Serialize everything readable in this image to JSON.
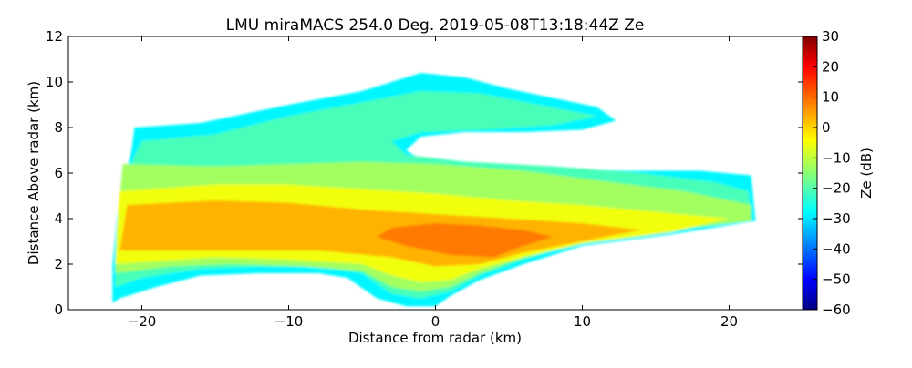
{
  "chart_data": {
    "type": "heatmap",
    "title": "LMU miraMACS 254.0 Deg. 2019-05-08T13:18:44Z  Ze",
    "xlabel": "Distance from radar (km)",
    "ylabel": "Distance Above radar  (km)",
    "xlim": [
      -25,
      25
    ],
    "ylim": [
      0,
      12
    ],
    "x_ticks": [
      -20,
      -10,
      0,
      10,
      20
    ],
    "x_tick_labels": [
      "−20",
      "−10",
      "0",
      "10",
      "20"
    ],
    "y_ticks": [
      0,
      2,
      4,
      6,
      8,
      10,
      12
    ],
    "y_tick_labels": [
      "0",
      "2",
      "4",
      "6",
      "8",
      "10",
      "12"
    ],
    "grid": false,
    "colorbar": {
      "label": "Ze (dB)",
      "colormap": "jet",
      "range": [
        -60,
        30
      ],
      "ticks": [
        30,
        20,
        10,
        0,
        -10,
        -20,
        -30,
        -40,
        -50,
        -60
      ],
      "tick_labels": [
        "30",
        "20",
        "10",
        "0",
        "−10",
        "−20",
        "−30",
        "−40",
        "−50",
        "−60"
      ]
    },
    "regions": [
      {
        "name": "upper-outline",
        "ze": -27,
        "points": [
          [
            -20.5,
            8.0
          ],
          [
            -16,
            8.2
          ],
          [
            -10,
            9.0
          ],
          [
            -5,
            9.6
          ],
          [
            -1,
            10.4
          ],
          [
            2,
            10.2
          ],
          [
            5,
            9.7
          ],
          [
            8,
            9.3
          ],
          [
            11,
            8.9
          ],
          [
            12.3,
            8.3
          ],
          [
            10,
            7.9
          ],
          [
            6,
            7.8
          ],
          [
            2,
            7.8
          ],
          [
            -1,
            7.6
          ],
          [
            -2,
            7.0
          ],
          [
            -1,
            6.6
          ],
          [
            3,
            6.4
          ],
          [
            8,
            6.2
          ],
          [
            13,
            6.1
          ],
          [
            18,
            6.1
          ],
          [
            21.5,
            5.9
          ],
          [
            21.8,
            3.9
          ],
          [
            16,
            3.3
          ],
          [
            10,
            2.8
          ],
          [
            6,
            2.0
          ],
          [
            3,
            1.3
          ],
          [
            1,
            0.6
          ],
          [
            0,
            0.15
          ],
          [
            -2,
            0.15
          ],
          [
            -4,
            0.5
          ],
          [
            -6,
            1.4
          ],
          [
            -8,
            1.6
          ],
          [
            -12,
            1.6
          ],
          [
            -16,
            1.5
          ],
          [
            -19,
            1.0
          ],
          [
            -21.5,
            0.5
          ],
          [
            -22,
            0.3
          ],
          [
            -22,
            2.0
          ],
          [
            -21.7,
            4.0
          ],
          [
            -21.2,
            5.7
          ],
          [
            -20.7,
            7.0
          ]
        ]
      },
      {
        "name": "upper-core",
        "ze": -20,
        "points": [
          [
            -20,
            7.4
          ],
          [
            -15,
            7.7
          ],
          [
            -10,
            8.5
          ],
          [
            -5,
            9.1
          ],
          [
            -1,
            9.6
          ],
          [
            3,
            9.5
          ],
          [
            7,
            9.0
          ],
          [
            11,
            8.5
          ],
          [
            8,
            8.1
          ],
          [
            3,
            7.9
          ],
          [
            -1,
            7.8
          ],
          [
            -3,
            7.4
          ],
          [
            -2,
            6.8
          ],
          [
            2,
            6.5
          ],
          [
            8,
            6.3
          ],
          [
            14,
            6.0
          ],
          [
            19,
            5.6
          ],
          [
            21.3,
            5.2
          ],
          [
            21.5,
            4.1
          ],
          [
            15,
            3.5
          ],
          [
            10,
            3.0
          ],
          [
            6,
            2.2
          ],
          [
            3,
            1.5
          ],
          [
            1,
            0.8
          ],
          [
            -1,
            0.5
          ],
          [
            -3,
            0.7
          ],
          [
            -5,
            1.6
          ],
          [
            -8,
            1.9
          ],
          [
            -12,
            1.9
          ],
          [
            -16,
            1.8
          ],
          [
            -20,
            1.4
          ],
          [
            -21.8,
            1.0
          ],
          [
            -21.6,
            3.5
          ],
          [
            -21,
            5.5
          ],
          [
            -20.6,
            6.6
          ]
        ]
      },
      {
        "name": "mid-layer",
        "ze": -12,
        "points": [
          [
            -21.3,
            6.4
          ],
          [
            -15,
            6.3
          ],
          [
            -10,
            6.4
          ],
          [
            -5,
            6.5
          ],
          [
            0,
            6.4
          ],
          [
            6,
            6.1
          ],
          [
            12,
            5.6
          ],
          [
            17,
            5.2
          ],
          [
            21.5,
            4.6
          ],
          [
            21.5,
            3.9
          ],
          [
            16,
            3.5
          ],
          [
            10,
            3.0
          ],
          [
            6,
            2.3
          ],
          [
            3,
            1.6
          ],
          [
            1,
            1.0
          ],
          [
            -1,
            0.8
          ],
          [
            -3,
            1.0
          ],
          [
            -5,
            1.7
          ],
          [
            -9,
            1.9
          ],
          [
            -14,
            2.0
          ],
          [
            -18,
            1.9
          ],
          [
            -21.8,
            1.6
          ],
          [
            -21.7,
            3.5
          ]
        ]
      },
      {
        "name": "warm-layer",
        "ze": -5,
        "points": [
          [
            -21.5,
            5.2
          ],
          [
            -15,
            5.5
          ],
          [
            -10,
            5.5
          ],
          [
            -5,
            5.3
          ],
          [
            0,
            5.1
          ],
          [
            5,
            4.8
          ],
          [
            10,
            4.6
          ],
          [
            15,
            4.3
          ],
          [
            20,
            4.0
          ],
          [
            16,
            3.4
          ],
          [
            10,
            2.9
          ],
          [
            6,
            2.3
          ],
          [
            3,
            1.8
          ],
          [
            1,
            1.3
          ],
          [
            -1,
            1.2
          ],
          [
            -3,
            1.5
          ],
          [
            -5,
            2.0
          ],
          [
            -10,
            2.2
          ],
          [
            -15,
            2.3
          ],
          [
            -21.8,
            2.0
          ],
          [
            -21.7,
            3.5
          ]
        ]
      },
      {
        "name": "bright-band",
        "ze": 3,
        "points": [
          [
            -21,
            4.6
          ],
          [
            -15,
            4.8
          ],
          [
            -10,
            4.7
          ],
          [
            -5,
            4.4
          ],
          [
            0,
            4.2
          ],
          [
            5,
            4.0
          ],
          [
            10,
            3.8
          ],
          [
            14,
            3.5
          ],
          [
            10,
            3.0
          ],
          [
            6,
            2.5
          ],
          [
            3,
            2.0
          ],
          [
            0,
            1.9
          ],
          [
            -3,
            2.3
          ],
          [
            -8,
            2.6
          ],
          [
            -15,
            2.6
          ],
          [
            -21.5,
            2.6
          ]
        ]
      },
      {
        "name": "bright-core",
        "ze": 8,
        "points": [
          [
            -3,
            3.6
          ],
          [
            0,
            3.8
          ],
          [
            3,
            3.7
          ],
          [
            6,
            3.5
          ],
          [
            8,
            3.2
          ],
          [
            6,
            2.8
          ],
          [
            4,
            2.3
          ],
          [
            1,
            2.4
          ],
          [
            -2,
            2.8
          ],
          [
            -4,
            3.2
          ]
        ]
      }
    ]
  }
}
